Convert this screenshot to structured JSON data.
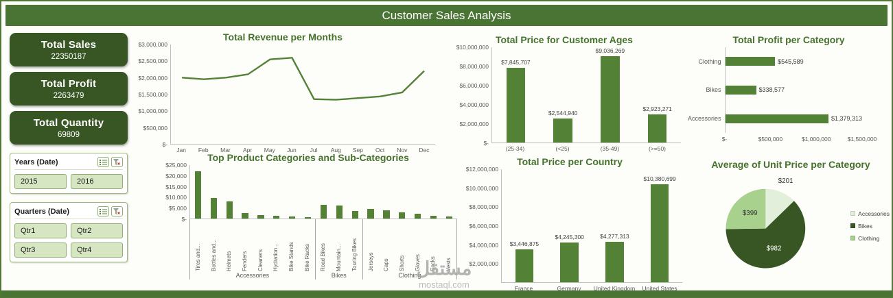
{
  "page": {
    "title": "Customer Sales Analysis"
  },
  "theme": {
    "header_green": "#4a7434",
    "card_green": "#375623",
    "bar_green": "#538135",
    "title_green": "#45722c"
  },
  "cards": [
    {
      "label": "Total Sales",
      "value": "22350187"
    },
    {
      "label": "Total Profit",
      "value": "2263479"
    },
    {
      "label": "Total Quantity",
      "value": "69809"
    }
  ],
  "slicers": [
    {
      "title": "Years (Date)",
      "buttons": [
        "2015",
        "2016"
      ]
    },
    {
      "title": "Quarters (Date)",
      "buttons": [
        "Qtr1",
        "Qtr2",
        "Qtr3",
        "Qtr4"
      ]
    }
  ],
  "watermark": {
    "arabic": "مستقل",
    "domain": "mostaql.com"
  },
  "chart_data": [
    {
      "type": "line",
      "title": "Total Revenue per Months",
      "categories": [
        "Jan",
        "Feb",
        "Mar",
        "Apr",
        "May",
        "Jun",
        "Jul",
        "Aug",
        "Sep",
        "Oct",
        "Nov",
        "Dec"
      ],
      "values": [
        2000000,
        1950000,
        2000000,
        2100000,
        2550000,
        2600000,
        1350000,
        1330000,
        1380000,
        1430000,
        1550000,
        2200000
      ],
      "ylim": [
        0,
        3000000
      ],
      "yticks": [
        {
          "t": "$3,000,000",
          "v": 3000000
        },
        {
          "t": "$2,500,000",
          "v": 2500000
        },
        {
          "t": "$2,000,000",
          "v": 2000000
        },
        {
          "t": "$1,500,000",
          "v": 1500000
        },
        {
          "t": "$1,000,000",
          "v": 1000000
        },
        {
          "t": "$500,000",
          "v": 500000
        },
        {
          "t": "$-",
          "v": 0
        }
      ],
      "legend": "none",
      "grid": false
    },
    {
      "type": "bar",
      "title": "Total Price for Customer Ages",
      "categories": [
        "(25-34)",
        "(<25)",
        "(35-49)",
        "(>=50)"
      ],
      "values": [
        7845707,
        2544940,
        9036269,
        2923271
      ],
      "labels": [
        "$7,845,707",
        "$2,544,940",
        "$9,036,269",
        "$2,923,271"
      ],
      "ylim": [
        0,
        10000000
      ],
      "yticks": [
        {
          "t": "$10,000,000",
          "v": 10000000
        },
        {
          "t": "$8,000,000",
          "v": 8000000
        },
        {
          "t": "$6,000,000",
          "v": 6000000
        },
        {
          "t": "$4,000,000",
          "v": 4000000
        },
        {
          "t": "$2,000,000",
          "v": 2000000
        },
        {
          "t": "$-",
          "v": 0
        }
      ],
      "legend": "none",
      "grid": false
    },
    {
      "type": "hbar",
      "title": "Total Profit per Category",
      "categories": [
        "Clothing",
        "Bikes",
        "Accessories"
      ],
      "values": [
        545589,
        338577,
        1379313
      ],
      "labels": [
        "$545,589",
        "$338,577",
        "$1,379,313"
      ],
      "xlim": [
        0,
        1500000
      ],
      "xticks": [
        {
          "t": "$-",
          "v": 0
        },
        {
          "t": "$500,000",
          "v": 500000
        },
        {
          "t": "$1,000,000",
          "v": 1000000
        },
        {
          "t": "$1,500,000",
          "v": 1500000
        }
      ],
      "legend": "none",
      "grid": false
    },
    {
      "type": "bar-grouped",
      "title": "Top Product Categories and Sub-Categories",
      "groups": [
        {
          "name": "Accessories",
          "categories": [
            "Tires and...",
            "Bottles and...",
            "Helmets",
            "Fenders",
            "Cleaners",
            "Hydration...",
            "Bike Stands",
            "Bike Racks"
          ],
          "values": [
            22000,
            9500,
            8000,
            2500,
            1500,
            1200,
            1000,
            700
          ]
        },
        {
          "name": "Bikes",
          "categories": [
            "Road Bikes",
            "Mountain...",
            "Touring Bikes"
          ],
          "values": [
            6500,
            6000,
            3500
          ]
        },
        {
          "name": "Clothing",
          "categories": [
            "Jerseys",
            "Caps",
            "Shorts",
            "Gloves",
            "Socks",
            "Vests"
          ],
          "values": [
            4500,
            4000,
            3000,
            2300,
            1200,
            1100
          ]
        }
      ],
      "ylim": [
        0,
        25000
      ],
      "yticks": [
        {
          "t": "$25,000",
          "v": 25000
        },
        {
          "t": "$20,000",
          "v": 20000
        },
        {
          "t": "$15,000",
          "v": 15000
        },
        {
          "t": "$10,000",
          "v": 10000
        },
        {
          "t": "$5,000",
          "v": 5000
        },
        {
          "t": "$-",
          "v": 0
        }
      ],
      "legend": "none",
      "grid": false
    },
    {
      "type": "bar",
      "title": "Total Price per Country",
      "categories": [
        "France",
        "Germany",
        "United Kingdom",
        "United States"
      ],
      "values": [
        3446875,
        4245300,
        4277313,
        10380699
      ],
      "labels": [
        "$3,446,875",
        "$4,245,300",
        "$4,277,313",
        "$10,380,699"
      ],
      "ylim": [
        0,
        12000000
      ],
      "yticks": [
        {
          "t": "$12,000,000",
          "v": 12000000
        },
        {
          "t": "$10,000,000",
          "v": 10000000
        },
        {
          "t": "$8,000,000",
          "v": 8000000
        },
        {
          "t": "$6,000,000",
          "v": 6000000
        },
        {
          "t": "$4,000,000",
          "v": 4000000
        },
        {
          "t": "$2,000,000",
          "v": 2000000
        }
      ],
      "legend": "none",
      "grid": false
    },
    {
      "type": "pie",
      "title": "Average of Unit Price per Category",
      "slices": [
        {
          "name": "Accessories",
          "value": 201,
          "label": "$201",
          "color": "#e2efda",
          "label_outside": true
        },
        {
          "name": "Bikes",
          "value": 982,
          "label": "$982",
          "color": "#375623",
          "label_color": "#ffffff"
        },
        {
          "name": "Clothing",
          "value": 399,
          "label": "$399",
          "color": "#a9d18e"
        }
      ],
      "legend": [
        "Accessories",
        "Bikes",
        "Clothing"
      ],
      "legend_position": "right"
    }
  ]
}
